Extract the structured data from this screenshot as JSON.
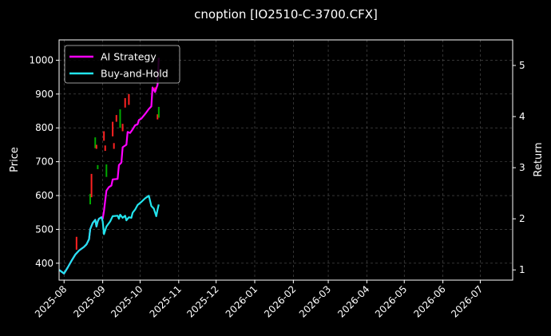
{
  "chart_data": {
    "type": "line",
    "title": "cnoption [IO2510-C-3700.CFX]",
    "ylabel": "Price",
    "y2label": "Return",
    "grid": true,
    "legend_position": "top-left",
    "ylim": [
      350,
      1060
    ],
    "y2lim": [
      0.8,
      5.5
    ],
    "xlim": [
      "2025-07-28",
      "2026-07-27"
    ],
    "y_ticks": [
      400,
      500,
      600,
      700,
      800,
      900,
      1000
    ],
    "y2_ticks": [
      1,
      2,
      3,
      4,
      5
    ],
    "x_ticks": [
      "2025-08",
      "2025-09",
      "2025-10",
      "2025-11",
      "2025-12",
      "2026-01",
      "2026-02",
      "2026-03",
      "2026-04",
      "2026-05",
      "2026-06",
      "2026-07"
    ],
    "candles": {
      "up_color": "#00aa00",
      "down_color": "#ff2222",
      "items": [
        {
          "date": "2025-08-11",
          "low": 440,
          "high": 478,
          "dir": "down"
        },
        {
          "date": "2025-08-22",
          "low": 574,
          "high": 605,
          "dir": "up"
        },
        {
          "date": "2025-08-23",
          "low": 595,
          "high": 664,
          "dir": "down"
        },
        {
          "date": "2025-08-26",
          "low": 740,
          "high": 772,
          "dir": "up"
        },
        {
          "date": "2025-08-27",
          "low": 738,
          "high": 750,
          "dir": "down"
        },
        {
          "date": "2025-08-28",
          "low": 678,
          "high": 690,
          "dir": "up"
        },
        {
          "date": "2025-09-02",
          "low": 762,
          "high": 790,
          "dir": "down"
        },
        {
          "date": "2025-09-03",
          "low": 732,
          "high": 748,
          "dir": "down"
        },
        {
          "date": "2025-09-04",
          "low": 655,
          "high": 692,
          "dir": "up"
        },
        {
          "date": "2025-09-09",
          "low": 775,
          "high": 818,
          "dir": "down"
        },
        {
          "date": "2025-09-10",
          "low": 738,
          "high": 755,
          "dir": "down"
        },
        {
          "date": "2025-09-12",
          "low": 818,
          "high": 838,
          "dir": "down"
        },
        {
          "date": "2025-09-15",
          "low": 800,
          "high": 855,
          "dir": "up"
        },
        {
          "date": "2025-09-17",
          "low": 790,
          "high": 812,
          "dir": "down"
        },
        {
          "date": "2025-09-19",
          "low": 860,
          "high": 888,
          "dir": "down"
        },
        {
          "date": "2025-09-22",
          "low": 868,
          "high": 900,
          "dir": "down"
        },
        {
          "date": "2025-10-13",
          "low": 905,
          "high": 920,
          "dir": "down"
        },
        {
          "date": "2025-10-15",
          "low": 825,
          "high": 840,
          "dir": "down"
        },
        {
          "date": "2025-10-16",
          "low": 830,
          "high": 862,
          "dir": "up"
        }
      ]
    },
    "series": [
      {
        "name": "AI Strategy",
        "color": "#ff00ff",
        "axis": "y2",
        "points": [
          [
            "2025-07-28",
            1.0
          ],
          [
            "2025-08-01",
            0.93
          ],
          [
            "2025-08-04",
            1.05
          ],
          [
            "2025-08-07",
            1.18
          ],
          [
            "2025-08-10",
            1.3
          ],
          [
            "2025-08-13",
            1.38
          ],
          [
            "2025-08-17",
            1.45
          ],
          [
            "2025-08-19",
            1.5
          ],
          [
            "2025-08-21",
            1.6
          ],
          [
            "2025-08-22",
            1.8
          ],
          [
            "2025-08-24",
            1.92
          ],
          [
            "2025-08-26",
            1.98
          ],
          [
            "2025-08-27",
            1.85
          ],
          [
            "2025-08-28",
            1.95
          ],
          [
            "2025-08-29",
            2.0
          ],
          [
            "2025-08-31",
            2.03
          ],
          [
            "2025-09-01",
            2.0
          ],
          [
            "2025-09-02",
            2.15
          ],
          [
            "2025-09-03",
            2.35
          ],
          [
            "2025-09-04",
            2.55
          ],
          [
            "2025-09-06",
            2.62
          ],
          [
            "2025-09-08",
            2.65
          ],
          [
            "2025-09-09",
            2.77
          ],
          [
            "2025-09-13",
            2.78
          ],
          [
            "2025-09-14",
            3.05
          ],
          [
            "2025-09-16",
            3.1
          ],
          [
            "2025-09-17",
            3.4
          ],
          [
            "2025-09-20",
            3.45
          ],
          [
            "2025-09-21",
            3.7
          ],
          [
            "2025-09-23",
            3.68
          ],
          [
            "2025-09-25",
            3.75
          ],
          [
            "2025-09-27",
            3.83
          ],
          [
            "2025-09-29",
            3.85
          ],
          [
            "2025-09-30",
            3.93
          ],
          [
            "2025-10-02",
            3.96
          ],
          [
            "2025-10-04",
            4.02
          ],
          [
            "2025-10-06",
            4.08
          ],
          [
            "2025-10-08",
            4.15
          ],
          [
            "2025-10-10",
            4.2
          ],
          [
            "2025-10-11",
            4.57
          ],
          [
            "2025-10-13",
            4.48
          ],
          [
            "2025-10-14",
            4.55
          ],
          [
            "2025-10-15",
            4.62
          ],
          [
            "2025-10-16",
            5.15
          ]
        ]
      },
      {
        "name": "Buy-and-Hold",
        "color": "#22e5ee",
        "axis": "y2",
        "points": [
          [
            "2025-07-28",
            1.0
          ],
          [
            "2025-08-01",
            0.93
          ],
          [
            "2025-08-04",
            1.05
          ],
          [
            "2025-08-07",
            1.18
          ],
          [
            "2025-08-10",
            1.3
          ],
          [
            "2025-08-13",
            1.38
          ],
          [
            "2025-08-17",
            1.45
          ],
          [
            "2025-08-19",
            1.5
          ],
          [
            "2025-08-21",
            1.6
          ],
          [
            "2025-08-22",
            1.8
          ],
          [
            "2025-08-24",
            1.92
          ],
          [
            "2025-08-26",
            1.98
          ],
          [
            "2025-08-27",
            1.85
          ],
          [
            "2025-08-28",
            1.95
          ],
          [
            "2025-08-29",
            2.0
          ],
          [
            "2025-08-31",
            2.03
          ],
          [
            "2025-09-01",
            1.95
          ],
          [
            "2025-09-02",
            1.7
          ],
          [
            "2025-09-04",
            1.85
          ],
          [
            "2025-09-07",
            1.95
          ],
          [
            "2025-09-09",
            2.05
          ],
          [
            "2025-09-13",
            2.06
          ],
          [
            "2025-09-14",
            2.0
          ],
          [
            "2025-09-15",
            2.08
          ],
          [
            "2025-09-17",
            2.02
          ],
          [
            "2025-09-19",
            2.06
          ],
          [
            "2025-09-20",
            1.97
          ],
          [
            "2025-09-22",
            2.03
          ],
          [
            "2025-09-24",
            2.02
          ],
          [
            "2025-09-25",
            2.12
          ],
          [
            "2025-09-27",
            2.18
          ],
          [
            "2025-09-29",
            2.27
          ],
          [
            "2025-10-02",
            2.33
          ],
          [
            "2025-10-05",
            2.4
          ],
          [
            "2025-10-08",
            2.45
          ],
          [
            "2025-10-10",
            2.25
          ],
          [
            "2025-10-12",
            2.2
          ],
          [
            "2025-10-14",
            2.05
          ],
          [
            "2025-10-15",
            2.18
          ],
          [
            "2025-10-16",
            2.28
          ]
        ]
      }
    ]
  }
}
